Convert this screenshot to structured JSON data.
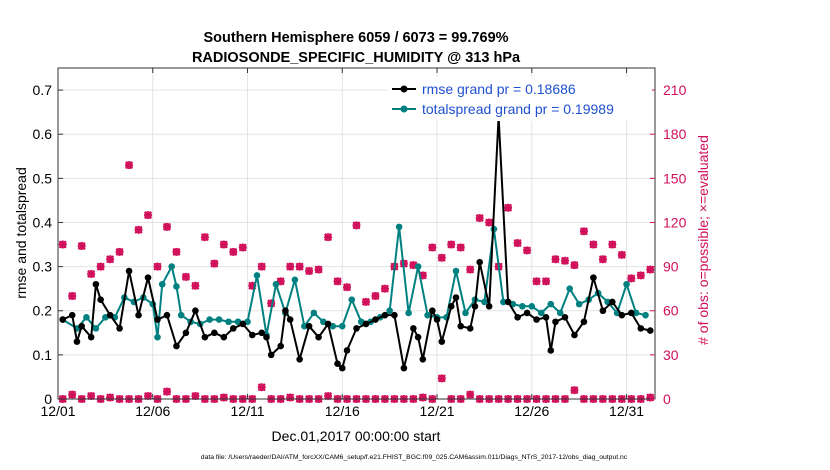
{
  "chart_data": {
    "type": "line",
    "title_line1": "Southern Hemisphere 6059 / 6073 = 99.769%",
    "title_line2": "RADIOSONDE_SPECIFIC_HUMIDITY @ 313 hPa",
    "xlabel": "Dec.01,2017 00:00:00 start",
    "ylabel_left": "rmse and totalspread",
    "ylabel_right": "# of obs: o=possible; ×=evaluated",
    "footer": "data file: /Users/raeder/DAI/ATM_forcXX/CAM6_setup/f.e21.FHIST_BGC.f09_025.CAM6assim.011/Diags_NTrS_2017-12/obs_diag_output.nc",
    "x_range": [
      0,
      31.5
    ],
    "xticks": [
      0,
      5,
      10,
      15,
      20,
      25,
      30
    ],
    "xtick_labels": [
      "12/01",
      "12/06",
      "12/11",
      "12/16",
      "12/21",
      "12/26",
      "12/31"
    ],
    "ylim_left": [
      0,
      0.75
    ],
    "yticks_left": [
      0,
      0.1,
      0.2,
      0.3,
      0.4,
      0.5,
      0.6,
      0.7
    ],
    "ytick_labels_left": [
      "0",
      "0.1",
      "0.2",
      "0.3",
      "0.4",
      "0.5",
      "0.6",
      "0.7"
    ],
    "ylim_right": [
      0,
      225
    ],
    "yticks_right": [
      0,
      30,
      60,
      90,
      120,
      150,
      180,
      210
    ],
    "ytick_labels_right": [
      "0",
      "30",
      "60",
      "90",
      "120",
      "150",
      "180",
      "210"
    ],
    "colors": {
      "rmse": "#000000",
      "spread": "#008080",
      "obs": "#d0105a",
      "right_axis": "#d0105a",
      "legend_text": "#1f50d0"
    },
    "series": [
      {
        "name": "rmse grand pr = 0.18686",
        "x": [
          0.25,
          0.75,
          1,
          1.25,
          1.75,
          2,
          2.25,
          2.75,
          3.25,
          3.75,
          4.25,
          4.75,
          5.25,
          5.75,
          6.25,
          6.75,
          7.25,
          7.75,
          8.25,
          8.75,
          9.25,
          9.75,
          10.25,
          10.75,
          11,
          11.25,
          11.75,
          12,
          12.25,
          12.75,
          13.25,
          13.75,
          14.25,
          14.75,
          15,
          15.25,
          15.75,
          16.25,
          16.75,
          17.25,
          17.75,
          18.25,
          18.75,
          19,
          19.25,
          19.75,
          20,
          20.25,
          20.75,
          21,
          21.25,
          21.75,
          22,
          22.25,
          22.75,
          23.25,
          23.75,
          24.25,
          24.75,
          25.25,
          25.75,
          26,
          26.25,
          26.75,
          27.25,
          27.75,
          28.25,
          28.75,
          29.25,
          29.75,
          30.25,
          30.75,
          31.25
        ],
        "y": [
          0.18,
          0.19,
          0.13,
          0.165,
          0.14,
          0.26,
          0.225,
          0.19,
          0.16,
          0.29,
          0.19,
          0.275,
          0.18,
          0.19,
          0.12,
          0.15,
          0.2,
          0.14,
          0.15,
          0.14,
          0.16,
          0.17,
          0.145,
          0.15,
          0.14,
          0.1,
          0.12,
          0.2,
          0.18,
          0.09,
          0.165,
          0.14,
          0.17,
          0.08,
          0.07,
          0.11,
          0.16,
          0.17,
          0.18,
          0.19,
          0.19,
          0.07,
          0.16,
          0.14,
          0.09,
          0.2,
          0.18,
          0.13,
          0.21,
          0.23,
          0.165,
          0.16,
          0.21,
          0.31,
          0.21,
          0.64,
          0.22,
          0.185,
          0.195,
          0.18,
          0.185,
          0.11,
          0.175,
          0.185,
          0.145,
          0.175,
          0.275,
          0.2,
          0.22,
          0.19,
          0.195,
          0.16,
          0.155
        ],
        "color": "#000000"
      },
      {
        "name": "totalspread grand pr = 0.19989",
        "x": [
          0.25,
          1,
          1.5,
          2,
          2.5,
          3,
          3.5,
          4,
          4.5,
          5,
          5.25,
          5.5,
          6,
          6.25,
          6.5,
          7,
          7.5,
          8,
          8.5,
          9,
          9.5,
          10,
          10.5,
          11,
          11.5,
          12,
          12.5,
          13,
          13.5,
          14,
          14.5,
          15,
          15.5,
          16,
          16.5,
          17,
          17.5,
          18,
          18.5,
          19,
          19.5,
          20,
          20.5,
          21,
          21.5,
          22,
          22.5,
          23,
          23.5,
          24,
          24.5,
          25,
          25.5,
          26,
          26.5,
          27,
          27.5,
          28,
          28.5,
          29,
          29.5,
          30,
          30.5,
          31
        ],
        "y": [
          0.18,
          0.16,
          0.185,
          0.16,
          0.185,
          0.185,
          0.23,
          0.22,
          0.23,
          0.215,
          0.14,
          0.26,
          0.3,
          0.255,
          0.19,
          0.175,
          0.17,
          0.18,
          0.18,
          0.175,
          0.175,
          0.175,
          0.28,
          0.145,
          0.26,
          0.195,
          0.27,
          0.165,
          0.195,
          0.175,
          0.165,
          0.165,
          0.225,
          0.175,
          0.175,
          0.185,
          0.2,
          0.39,
          0.195,
          0.3,
          0.19,
          0.185,
          0.185,
          0.29,
          0.195,
          0.225,
          0.22,
          0.385,
          0.22,
          0.215,
          0.21,
          0.21,
          0.195,
          0.215,
          0.195,
          0.25,
          0.215,
          0.225,
          0.24,
          0.22,
          0.195,
          0.26,
          0.195,
          0.19
        ],
        "color": "#008080"
      },
      {
        "name": "possible",
        "x": [
          0.25,
          0.75,
          1.25,
          1.75,
          2.25,
          2.75,
          3.25,
          3.75,
          4.25,
          4.75,
          5.25,
          5.75,
          6.25,
          6.75,
          7.25,
          7.75,
          8.25,
          8.75,
          9.25,
          9.75,
          10.25,
          10.75,
          11.25,
          11.75,
          12.25,
          12.75,
          13.25,
          13.75,
          14.25,
          14.75,
          15.25,
          15.75,
          16.25,
          16.75,
          17.25,
          17.75,
          18.25,
          18.75,
          19.25,
          19.75,
          20.25,
          20.75,
          21.25,
          21.75,
          22.25,
          22.75,
          23.25,
          23.75,
          24.25,
          24.75,
          25.25,
          25.75,
          26.25,
          26.75,
          27.25,
          27.75,
          28.25,
          28.75,
          29.25,
          29.75,
          30.25,
          30.75,
          31.25
        ],
        "y": [
          105,
          70,
          104,
          85,
          90,
          95,
          100,
          159,
          115,
          125,
          90,
          117,
          100,
          83,
          77,
          110,
          92,
          105,
          100,
          103,
          77,
          90,
          65,
          80,
          90,
          90,
          87,
          88,
          110,
          80,
          76,
          118,
          66,
          70,
          75,
          90,
          92,
          91,
          84,
          103,
          96,
          105,
          103,
          88,
          123,
          120,
          90,
          130,
          106,
          101,
          80,
          80,
          95,
          94,
          91,
          114,
          105,
          95,
          105,
          98,
          82,
          84,
          88
        ],
        "color": "#d0105a"
      },
      {
        "name": "evaluated",
        "x": [
          0.25,
          0.75,
          1.25,
          1.75,
          2.25,
          2.75,
          3.25,
          3.75,
          4.25,
          4.75,
          5.25,
          5.75,
          6.25,
          6.75,
          7.25,
          7.75,
          8.25,
          8.75,
          9.25,
          9.75,
          10.25,
          10.75,
          11.25,
          11.75,
          12.25,
          12.75,
          13.25,
          13.75,
          14.25,
          14.75,
          15.25,
          15.75,
          16.25,
          16.75,
          17.25,
          17.75,
          18.25,
          18.75,
          19.25,
          19.75,
          20.25,
          20.75,
          21.25,
          21.75,
          22.25,
          22.75,
          23.25,
          23.75,
          24.25,
          24.75,
          25.25,
          25.75,
          26.25,
          26.75,
          27.25,
          27.75,
          28.25,
          28.75,
          29.25,
          29.75,
          30.25,
          30.75,
          31.25
        ],
        "y": [
          0,
          3,
          0,
          2,
          0,
          1,
          0,
          0,
          0,
          2,
          0,
          5,
          0,
          0,
          2,
          0,
          0,
          1,
          0,
          0,
          0,
          8,
          0,
          0,
          1,
          0,
          0,
          0,
          2,
          0,
          0,
          0,
          0,
          0,
          0,
          0,
          0,
          0,
          1,
          0,
          14,
          0,
          0,
          3,
          0,
          0,
          0,
          0,
          0,
          0,
          0,
          0,
          0,
          0,
          6,
          0,
          0,
          0,
          0,
          0,
          0,
          0,
          1
        ],
        "color": "#d0105a"
      }
    ],
    "legend": [
      {
        "label": "rmse grand pr = 0.18686",
        "color": "#000000"
      },
      {
        "label": "totalspread grand pr = 0.19989",
        "color": "#008080"
      }
    ],
    "legend_placement": "top-right"
  }
}
